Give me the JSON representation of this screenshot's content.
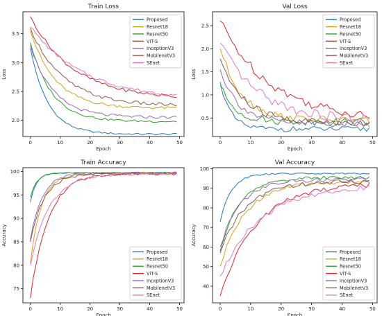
{
  "series_names": [
    "Proposed",
    "Resnet18",
    "Resnet50",
    "ViT-S",
    "InceptionV3",
    "MobilenetV3",
    "SEnet"
  ],
  "series_colors": [
    "#1f77b4",
    "#d4a017",
    "#2ca02c",
    "#d62728",
    "#9467bd",
    "#8c564b",
    "#e377c2"
  ],
  "chart_data": [
    {
      "type": "line",
      "title": "Train Loss",
      "xlabel": "Epoch",
      "ylabel": "Loss",
      "xlim": [
        -2.5,
        51.5
      ],
      "ylim": [
        1.72,
        3.88
      ],
      "xticks": [
        "0",
        "10",
        "20",
        "30",
        "40",
        "50"
      ],
      "yticks": [
        "2.0",
        "2.5",
        "3.0",
        "3.5"
      ],
      "legend": "top-right",
      "series": [
        {
          "name": "Proposed",
          "start": 3.25,
          "end": 1.76,
          "rate": 0.17,
          "noise": 0.015
        },
        {
          "name": "Resnet18",
          "start": 3.55,
          "end": 2.21,
          "rate": 0.12,
          "noise": 0.025
        },
        {
          "name": "Resnet50",
          "start": 3.35,
          "end": 1.98,
          "rate": 0.14,
          "noise": 0.02
        },
        {
          "name": "ViT-S",
          "start": 3.8,
          "end": 2.37,
          "rate": 0.07,
          "noise": 0.03
        },
        {
          "name": "InceptionV3",
          "start": 3.3,
          "end": 2.05,
          "rate": 0.13,
          "noise": 0.025
        },
        {
          "name": "MobilenetV3",
          "start": 3.6,
          "end": 2.25,
          "rate": 0.09,
          "noise": 0.03
        },
        {
          "name": "SEnet",
          "start": 3.62,
          "end": 2.35,
          "rate": 0.055,
          "noise": 0.03
        }
      ]
    },
    {
      "type": "line",
      "title": "Val Loss",
      "xlabel": "Epoch",
      "ylabel": "Loss",
      "xlim": [
        -2.5,
        51.5
      ],
      "ylim": [
        0.1,
        2.8
      ],
      "xticks": [
        "0",
        "10",
        "20",
        "30",
        "40",
        "50"
      ],
      "yticks": [
        "0.5",
        "1.0",
        "1.5",
        "2.0",
        "2.5"
      ],
      "legend": "top-right",
      "series": [
        {
          "name": "Proposed",
          "start": 1.28,
          "end": 0.26,
          "rate": 0.3,
          "noise": 0.06
        },
        {
          "name": "Resnet18",
          "start": 2.0,
          "end": 0.45,
          "rate": 0.14,
          "noise": 0.08
        },
        {
          "name": "Resnet50",
          "start": 1.2,
          "end": 0.42,
          "rate": 0.2,
          "noise": 0.08
        },
        {
          "name": "ViT-S",
          "start": 2.6,
          "end": 0.45,
          "rate": 0.06,
          "noise": 0.1
        },
        {
          "name": "InceptionV3",
          "start": 1.55,
          "end": 0.38,
          "rate": 0.16,
          "noise": 0.08
        },
        {
          "name": "MobilenetV3",
          "start": 1.78,
          "end": 0.4,
          "rate": 0.13,
          "noise": 0.09
        },
        {
          "name": "SEnet",
          "start": 2.12,
          "end": 0.45,
          "rate": 0.08,
          "noise": 0.1
        }
      ]
    },
    {
      "type": "line",
      "title": "Train Accuracy",
      "xlabel": "Epoch",
      "ylabel": "Accuracy",
      "xlim": [
        -2.5,
        51.5
      ],
      "ylim": [
        72.0,
        100.8
      ],
      "xticks": [
        "0",
        "10",
        "20",
        "30",
        "40",
        "50"
      ],
      "yticks": [
        "75",
        "80",
        "85",
        "90",
        "95",
        "100"
      ],
      "legend": "bottom-right",
      "series": [
        {
          "name": "Proposed",
          "start": 93.5,
          "end": 99.7,
          "rate": 0.5,
          "noise": 0.1
        },
        {
          "name": "Resnet18",
          "start": 80.5,
          "end": 99.6,
          "rate": 0.28,
          "noise": 0.3
        },
        {
          "name": "Resnet50",
          "start": 94.5,
          "end": 99.7,
          "rate": 0.45,
          "noise": 0.1
        },
        {
          "name": "ViT-S",
          "start": 73.0,
          "end": 99.6,
          "rate": 0.17,
          "noise": 0.3
        },
        {
          "name": "InceptionV3",
          "start": 85.5,
          "end": 99.6,
          "rate": 0.26,
          "noise": 0.3
        },
        {
          "name": "MobilenetV3",
          "start": 85.0,
          "end": 99.5,
          "rate": 0.22,
          "noise": 0.3
        },
        {
          "name": "SEnet",
          "start": 80.0,
          "end": 99.5,
          "rate": 0.16,
          "noise": 0.3
        }
      ]
    },
    {
      "type": "line",
      "title": "Val Accuracy",
      "xlabel": "Epoch",
      "ylabel": "Accuracy",
      "xlim": [
        -2.5,
        51.5
      ],
      "ylim": [
        31.5,
        100.5
      ],
      "xticks": [
        "0",
        "10",
        "20",
        "30",
        "40",
        "50"
      ],
      "yticks": [
        "40",
        "50",
        "60",
        "70",
        "80",
        "90",
        "100"
      ],
      "legend": "bottom-right",
      "series": [
        {
          "name": "Proposed",
          "start": 73.0,
          "end": 97.5,
          "rate": 0.28,
          "noise": 0.4
        },
        {
          "name": "Resnet18",
          "start": 50.0,
          "end": 93.5,
          "rate": 0.12,
          "noise": 1.0
        },
        {
          "name": "Resnet50",
          "start": 58.0,
          "end": 95.5,
          "rate": 0.16,
          "noise": 0.8
        },
        {
          "name": "ViT-S",
          "start": 35.0,
          "end": 92.5,
          "rate": 0.085,
          "noise": 1.2
        },
        {
          "name": "InceptionV3",
          "start": 60.0,
          "end": 94.5,
          "rate": 0.15,
          "noise": 1.0
        },
        {
          "name": "MobilenetV3",
          "start": 57.0,
          "end": 93.5,
          "rate": 0.12,
          "noise": 1.2
        },
        {
          "name": "SEnet",
          "start": 45.0,
          "end": 91.5,
          "rate": 0.075,
          "noise": 1.3
        }
      ]
    }
  ]
}
